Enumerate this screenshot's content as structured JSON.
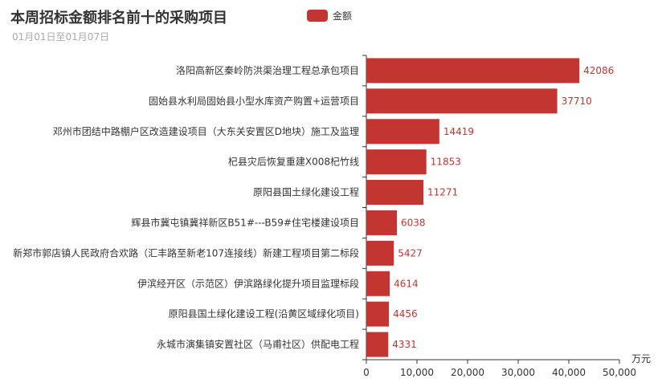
{
  "header": {
    "title": "本周招标金额排名前十的采购项目",
    "subtitle": "01月01日至01月07日"
  },
  "colors": {
    "bar": "#c23531",
    "axis": "#333333"
  },
  "chart_data": {
    "type": "bar",
    "orientation": "horizontal",
    "title": "本周招标金额排名前十的采购项目",
    "subtitle": "01月01日至01月07日",
    "legend": [
      "金额"
    ],
    "legend_position": "top",
    "x_unit": "万元",
    "xlim": [
      0,
      50000
    ],
    "xticks": [
      "0",
      "10,000",
      "20,000",
      "30,000",
      "40,000",
      "50,000"
    ],
    "grid": false,
    "categories": [
      "洛阳高新区秦岭防洪渠治理工程总承包项目",
      "固始县水利局固始县小型水库资产购置+运营项目",
      "邓州市团结中路棚户区改造建设项目（大东关安置区D地块）施工及监理",
      "杞县灾后恢复重建X008杞竹线",
      "原阳县国土绿化建设工程",
      "辉县市冀屯镇冀祥新区B51#---B59#住宅楼建设项目",
      "新郑市郭店镇人民政府合欢路（汇丰路至新老107连接线）新建工程项目第二标段",
      "伊滨经开区（示范区）伊滨路绿化提升项目监理标段",
      "原阳县国土绿化建设工程(沿黄区域绿化项目)",
      "永城市演集镇安置社区（马甫社区）供配电工程"
    ],
    "series": [
      {
        "name": "金额",
        "values": [
          42086,
          37710,
          14419,
          11853,
          11271,
          6038,
          5427,
          4614,
          4456,
          4331
        ]
      }
    ]
  }
}
